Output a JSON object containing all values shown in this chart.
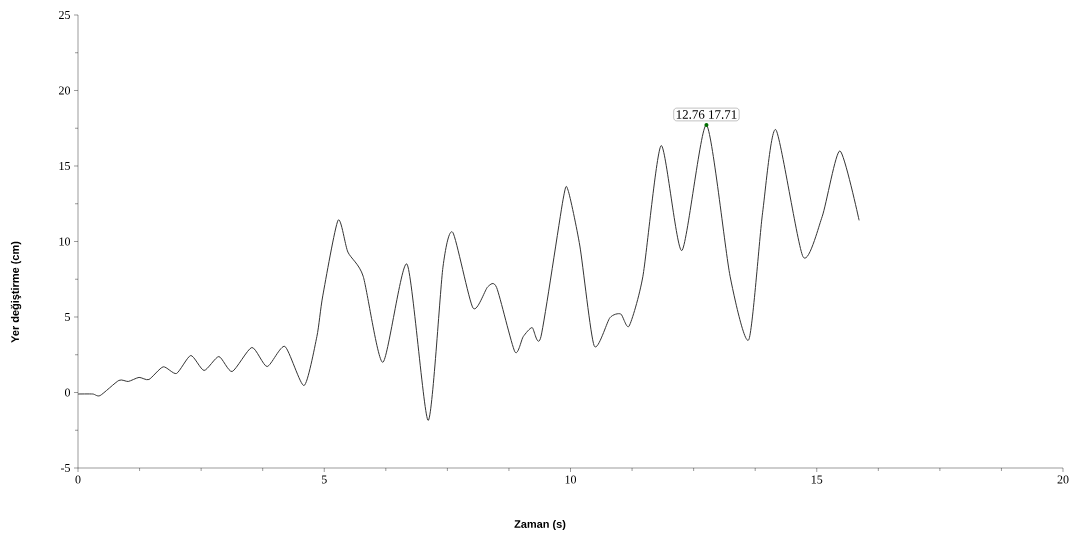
{
  "chart_data": {
    "type": "line",
    "xlabel": "Zaman (s)",
    "ylabel": "Yer değiştirme (cm)",
    "x": [
      0,
      0.3,
      0.45,
      0.83,
      1.02,
      1.24,
      1.44,
      1.73,
      2.0,
      2.29,
      2.56,
      2.86,
      3.13,
      3.53,
      3.84,
      4.2,
      4.59,
      4.85,
      4.97,
      5.28,
      5.48,
      5.79,
      6.19,
      6.68,
      7.11,
      7.41,
      7.61,
      8.02,
      8.32,
      8.5,
      8.87,
      9.04,
      9.22,
      9.4,
      9.85,
      9.95,
      10.19,
      10.48,
      10.8,
      11.02,
      11.19,
      11.47,
      11.84,
      12.26,
      12.76,
      13.24,
      13.62,
      13.9,
      14.17,
      14.72,
      15.11,
      15.47,
      15.86
    ],
    "series": [
      {
        "color": "#333333",
        "values": [
          -0.1,
          -0.1,
          -0.2,
          0.8,
          0.73,
          1.0,
          0.86,
          1.7,
          1.26,
          2.45,
          1.46,
          2.38,
          1.39,
          2.98,
          1.72,
          3.05,
          0.46,
          3.7,
          6.4,
          11.4,
          9.3,
          7.7,
          2.0,
          8.5,
          -1.85,
          8.3,
          10.6,
          5.6,
          7.0,
          6.95,
          2.7,
          3.7,
          4.3,
          3.7,
          12.8,
          13.4,
          9.7,
          3.1,
          4.95,
          5.2,
          4.4,
          7.7,
          16.35,
          9.4,
          17.71,
          7.7,
          3.5,
          11.9,
          17.4,
          9.0,
          11.65,
          16.0,
          11.4
        ]
      }
    ],
    "xlim": [
      0,
      20
    ],
    "ylim": [
      -5,
      25
    ],
    "xticks": [
      0,
      5,
      10,
      15,
      20
    ],
    "yticks": [
      -5,
      0,
      5,
      10,
      15,
      20,
      25
    ],
    "marker": "none",
    "line_style": "solid",
    "annotations": [
      {
        "text": "12.76 17.71",
        "x": 12.76,
        "y": 17.71
      }
    ]
  }
}
